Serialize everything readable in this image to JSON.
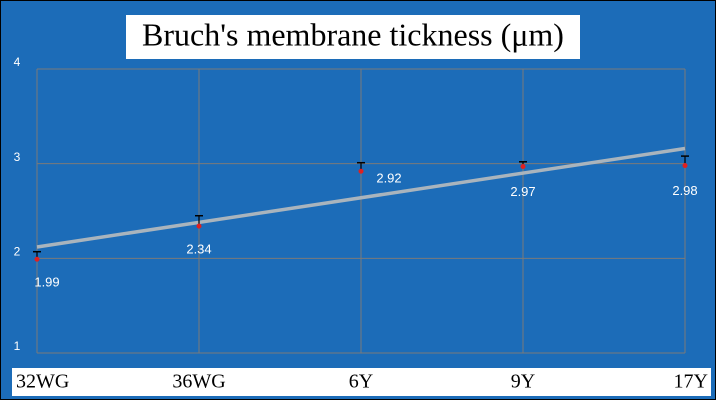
{
  "chart_data": {
    "type": "line",
    "title": "Bruch's membrane tickness (μm)",
    "categories": [
      "32WG",
      "36WG",
      "6Y",
      "9Y",
      "17Y"
    ],
    "series": [
      {
        "color": "#e02020",
        "values": [
          1.99,
          2.34,
          2.92,
          2.97,
          2.98
        ],
        "errors": [
          0.08,
          0.11,
          0.09,
          0.05,
          0.1
        ]
      }
    ],
    "trendline": {
      "color": "#a9b4bd",
      "values": [
        2.12,
        3.16
      ]
    },
    "ylim": [
      1,
      4
    ],
    "yticks": [
      1,
      2,
      3,
      4
    ],
    "grid": true
  }
}
